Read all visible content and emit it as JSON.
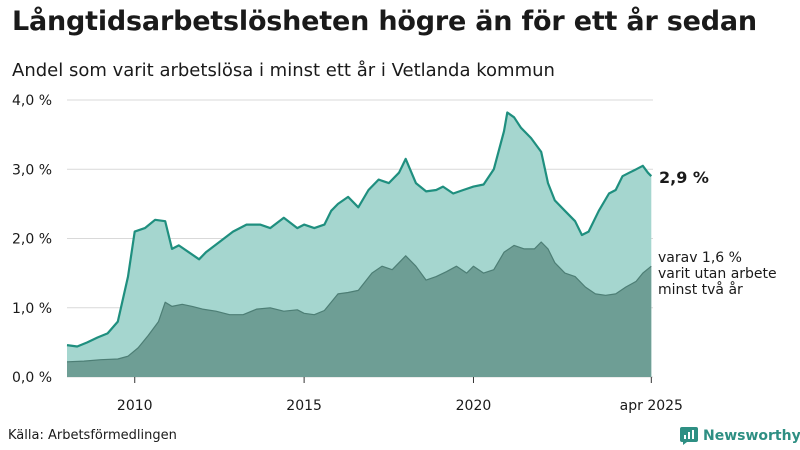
{
  "header": {
    "title": "Långtidsarbetslösheten högre än för ett år sedan",
    "subtitle": "Andel som varit arbetslösa i minst ett år i Vetlanda kommun"
  },
  "footer": {
    "source": "Källa: Arbetsförmedlingen",
    "brand": "Newsworthy"
  },
  "colors": {
    "total_line": "#1f8f7f",
    "total_fill": "#a5d6cf",
    "long_fill": "#6e9e95",
    "long_line": "#4d7e75",
    "grid": "#d9d9d9",
    "brand": "#2e8f83"
  },
  "chart_data": {
    "type": "area",
    "title": "Långtidsarbetslösheten högre än för ett år sedan",
    "subtitle": "Andel som varit arbetslösa i minst ett år i Vetlanda kommun",
    "x_range": [
      2008.0,
      2025.3
    ],
    "ylim": [
      0,
      4.0
    ],
    "y_ticks": [
      0,
      1.0,
      2.0,
      3.0,
      4.0
    ],
    "y_tick_labels": [
      "0,0 %",
      "1,0 %",
      "2,0 %",
      "3,0 %",
      "4,0 %"
    ],
    "x_ticks": [
      2010,
      2015,
      2020,
      2025.25
    ],
    "x_tick_labels": [
      "2010",
      "2015",
      "2020",
      "apr 2025"
    ],
    "grid": true,
    "series": [
      {
        "key": "total",
        "x": [
          2008.0,
          2008.3,
          2008.6,
          2008.9,
          2009.2,
          2009.5,
          2009.8,
          2010.0,
          2010.3,
          2010.6,
          2010.9,
          2011.1,
          2011.3,
          2011.6,
          2011.9,
          2012.1,
          2012.5,
          2012.9,
          2013.3,
          2013.7,
          2014.0,
          2014.4,
          2014.8,
          2015.0,
          2015.3,
          2015.6,
          2015.8,
          2016.0,
          2016.3,
          2016.6,
          2016.9,
          2017.2,
          2017.5,
          2017.8,
          2018.0,
          2018.3,
          2018.6,
          2018.9,
          2019.1,
          2019.4,
          2019.7,
          2020.0,
          2020.3,
          2020.6,
          2020.9,
          2021.0,
          2021.2,
          2021.4,
          2021.7,
          2022.0,
          2022.2,
          2022.4,
          2022.7,
          2023.0,
          2023.2,
          2023.4,
          2023.7,
          2024.0,
          2024.2,
          2024.4,
          2024.6,
          2024.8,
          2025.0,
          2025.15,
          2025.25
        ],
        "y": [
          0.46,
          0.44,
          0.5,
          0.57,
          0.63,
          0.8,
          1.45,
          2.1,
          2.15,
          2.27,
          2.25,
          1.85,
          1.9,
          1.8,
          1.7,
          1.8,
          1.95,
          2.1,
          2.2,
          2.2,
          2.15,
          2.3,
          2.15,
          2.2,
          2.15,
          2.2,
          2.4,
          2.5,
          2.6,
          2.45,
          2.7,
          2.85,
          2.8,
          2.95,
          3.15,
          2.8,
          2.68,
          2.7,
          2.75,
          2.65,
          2.7,
          2.75,
          2.78,
          3.0,
          3.55,
          3.82,
          3.75,
          3.6,
          3.45,
          3.25,
          2.8,
          2.55,
          2.4,
          2.25,
          2.05,
          2.1,
          2.4,
          2.65,
          2.7,
          2.9,
          2.95,
          3.0,
          3.05,
          2.95,
          2.9
        ]
      },
      {
        "key": "long",
        "x": [
          2008.0,
          2008.5,
          2009.0,
          2009.5,
          2009.8,
          2010.1,
          2010.4,
          2010.7,
          2010.9,
          2011.1,
          2011.4,
          2011.7,
          2012.0,
          2012.4,
          2012.8,
          2013.2,
          2013.6,
          2014.0,
          2014.4,
          2014.8,
          2015.0,
          2015.3,
          2015.6,
          2016.0,
          2016.3,
          2016.6,
          2017.0,
          2017.3,
          2017.6,
          2018.0,
          2018.3,
          2018.6,
          2018.9,
          2019.2,
          2019.5,
          2019.8,
          2020.0,
          2020.3,
          2020.6,
          2020.9,
          2021.2,
          2021.5,
          2021.8,
          2022.0,
          2022.2,
          2022.4,
          2022.7,
          2023.0,
          2023.3,
          2023.6,
          2023.9,
          2024.2,
          2024.5,
          2024.8,
          2025.0,
          2025.25
        ],
        "y": [
          0.22,
          0.23,
          0.25,
          0.26,
          0.3,
          0.42,
          0.6,
          0.8,
          1.08,
          1.02,
          1.05,
          1.02,
          0.98,
          0.95,
          0.9,
          0.9,
          0.98,
          1.0,
          0.95,
          0.97,
          0.92,
          0.9,
          0.96,
          1.2,
          1.22,
          1.25,
          1.5,
          1.6,
          1.55,
          1.75,
          1.6,
          1.4,
          1.45,
          1.52,
          1.6,
          1.5,
          1.6,
          1.5,
          1.55,
          1.8,
          1.9,
          1.85,
          1.85,
          1.95,
          1.85,
          1.65,
          1.5,
          1.45,
          1.3,
          1.2,
          1.18,
          1.2,
          1.3,
          1.38,
          1.5,
          1.6
        ]
      }
    ],
    "annotations": [
      {
        "label": "2,9 %",
        "value": 2.9,
        "bold": true
      },
      {
        "lines": [
          "varav 1,6 %",
          "varit utan arbete",
          "minst två år"
        ],
        "value": 1.6
      }
    ]
  }
}
